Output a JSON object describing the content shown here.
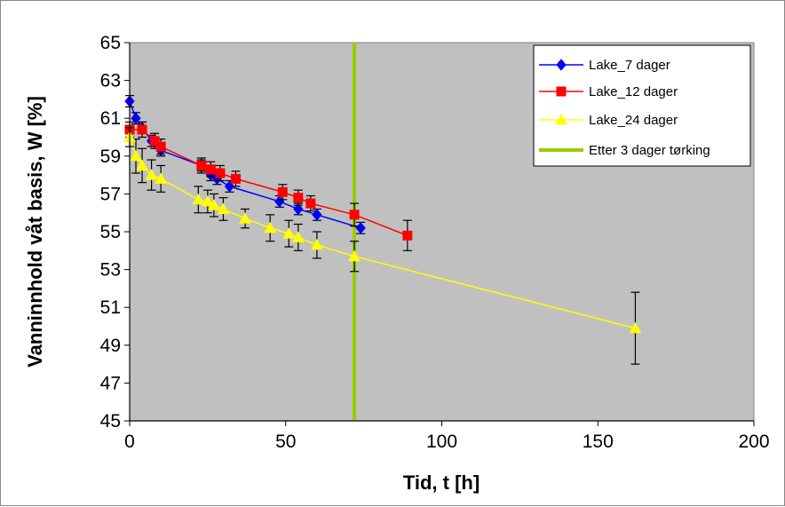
{
  "chart_data": {
    "type": "line",
    "title": "",
    "xlabel": "Tid, t [h]",
    "ylabel": "Vanninnhold våt basis, W [%]",
    "xlim": [
      0,
      200
    ],
    "ylim": [
      45,
      65
    ],
    "x_ticks": [
      0,
      50,
      100,
      150,
      200
    ],
    "y_ticks": [
      45,
      47,
      49,
      51,
      53,
      55,
      57,
      59,
      61,
      63,
      65
    ],
    "plot_background": "#c0c0c0",
    "grid": false,
    "legend_position": "top-right",
    "series": [
      {
        "name": "Lake_7 dager",
        "color": "#0000ff",
        "marker": "diamond",
        "points": [
          {
            "x": 0,
            "y": 61.9,
            "err": 0.3
          },
          {
            "x": 2,
            "y": 61.0,
            "err": 0.3
          },
          {
            "x": 4,
            "y": 60.5,
            "err": 0.3
          },
          {
            "x": 7,
            "y": 59.8,
            "err": 0.3
          },
          {
            "x": 10,
            "y": 59.3,
            "err": 0.3
          },
          {
            "x": 23,
            "y": 58.5,
            "err": 0.3
          },
          {
            "x": 26,
            "y": 58.0,
            "err": 0.3
          },
          {
            "x": 28,
            "y": 57.8,
            "err": 0.3
          },
          {
            "x": 32,
            "y": 57.4,
            "err": 0.3
          },
          {
            "x": 48,
            "y": 56.6,
            "err": 0.3
          },
          {
            "x": 54,
            "y": 56.2,
            "err": 0.3
          },
          {
            "x": 60,
            "y": 55.9,
            "err": 0.3
          },
          {
            "x": 74,
            "y": 55.2,
            "err": 0.3
          }
        ]
      },
      {
        "name": "Lake_12 dager",
        "color": "#ff0000",
        "marker": "square",
        "points": [
          {
            "x": 0,
            "y": 60.4,
            "err": 0.4
          },
          {
            "x": 4,
            "y": 60.4,
            "err": 0.4
          },
          {
            "x": 8,
            "y": 59.8,
            "err": 0.4
          },
          {
            "x": 10,
            "y": 59.5,
            "err": 0.4
          },
          {
            "x": 23,
            "y": 58.5,
            "err": 0.4
          },
          {
            "x": 26,
            "y": 58.3,
            "err": 0.4
          },
          {
            "x": 29,
            "y": 58.1,
            "err": 0.4
          },
          {
            "x": 34,
            "y": 57.8,
            "err": 0.4
          },
          {
            "x": 49,
            "y": 57.1,
            "err": 0.4
          },
          {
            "x": 54,
            "y": 56.8,
            "err": 0.4
          },
          {
            "x": 58,
            "y": 56.5,
            "err": 0.4
          },
          {
            "x": 72,
            "y": 55.9,
            "err": 0.6
          },
          {
            "x": 89,
            "y": 54.8,
            "err": 0.8
          }
        ]
      },
      {
        "name": "Lake_24 dager",
        "color": "#ffff00",
        "marker": "triangle",
        "points": [
          {
            "x": 0,
            "y": 60.0,
            "err": 0.5
          },
          {
            "x": 2,
            "y": 59.0,
            "err": 0.9
          },
          {
            "x": 4,
            "y": 58.5,
            "err": 0.9
          },
          {
            "x": 7,
            "y": 58.0,
            "err": 0.8
          },
          {
            "x": 10,
            "y": 57.8,
            "err": 0.7
          },
          {
            "x": 22,
            "y": 56.7,
            "err": 0.7
          },
          {
            "x": 25,
            "y": 56.6,
            "err": 0.6
          },
          {
            "x": 27,
            "y": 56.4,
            "err": 0.6
          },
          {
            "x": 30,
            "y": 56.2,
            "err": 0.6
          },
          {
            "x": 37,
            "y": 55.7,
            "err": 0.5
          },
          {
            "x": 45,
            "y": 55.2,
            "err": 0.7
          },
          {
            "x": 51,
            "y": 54.9,
            "err": 0.7
          },
          {
            "x": 54,
            "y": 54.7,
            "err": 0.7
          },
          {
            "x": 60,
            "y": 54.3,
            "err": 0.7
          },
          {
            "x": 72,
            "y": 53.7,
            "err": 0.8
          },
          {
            "x": 162,
            "y": 49.9,
            "err": 1.9
          }
        ]
      }
    ],
    "vline": {
      "name": "Etter 3 dager tørking",
      "x": 72,
      "color": "#99cc00"
    },
    "legend": [
      "Lake_7 dager",
      "Lake_12 dager",
      "Lake_24 dager",
      "Etter 3 dager tørking"
    ]
  }
}
